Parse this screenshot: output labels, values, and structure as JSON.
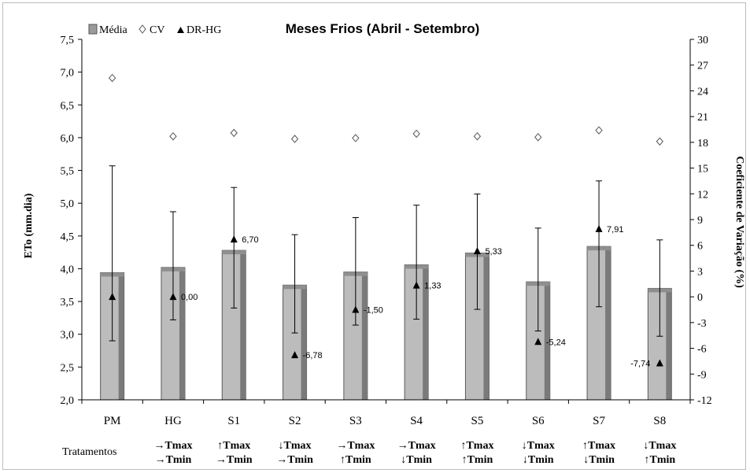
{
  "chart_data": {
    "type": "bar",
    "title": "Meses Frios (Abril - Setembro)",
    "ylabel": "ETo (mm.dia)",
    "y2label": "Coeficiente de Variação (%)",
    "ylim": [
      2.0,
      7.5
    ],
    "y2lim": [
      -12,
      30
    ],
    "yticks": [
      "2,0",
      "2,5",
      "3,0",
      "3,5",
      "4,0",
      "4,5",
      "5,0",
      "5,5",
      "6,0",
      "6,5",
      "7,0",
      "7,5"
    ],
    "y2ticks": [
      "-12",
      "-9",
      "-6",
      "-3",
      "0",
      "3",
      "6",
      "9",
      "12",
      "15",
      "18",
      "21",
      "24",
      "27",
      "30"
    ],
    "categories": [
      "PM",
      "HG",
      "S1",
      "S2",
      "S3",
      "S4",
      "S5",
      "S6",
      "S7",
      "S8"
    ],
    "legend": {
      "position": "top-left",
      "entries": [
        "Média",
        "CV",
        "DR-HG"
      ]
    },
    "series": [
      {
        "name": "Média",
        "type": "bar",
        "axis": "left",
        "values": [
          3.94,
          4.02,
          4.28,
          3.75,
          3.95,
          4.06,
          4.24,
          3.8,
          4.34,
          3.7
        ],
        "error_high": [
          5.57,
          4.87,
          5.24,
          4.52,
          4.78,
          4.97,
          5.14,
          4.62,
          5.34,
          4.44
        ],
        "error_low": [
          2.9,
          3.22,
          3.4,
          3.02,
          3.14,
          3.23,
          3.38,
          3.05,
          3.42,
          2.97
        ]
      },
      {
        "name": "CV",
        "type": "scatter",
        "axis": "right",
        "values": [
          25.5,
          18.7,
          19.1,
          18.4,
          18.5,
          19.0,
          18.7,
          18.6,
          19.4,
          18.1
        ]
      },
      {
        "name": "DR-HG",
        "type": "scatter",
        "axis": "right",
        "values": [
          0.0,
          0.0,
          6.7,
          -6.78,
          -1.5,
          1.33,
          5.33,
          -5.24,
          7.91,
          -7.74
        ],
        "labels": [
          "",
          "0,00",
          "6,70",
          "-6,78",
          "-1,50",
          "1,33",
          "5,33",
          "-5,24",
          "7,91",
          "-7,74"
        ]
      }
    ],
    "treatments": {
      "title": "Tratamentos",
      "rows": [
        [
          "→Tmax",
          "↑Tmax",
          "↓Tmax",
          "→Tmax",
          "→Tmax",
          "↑Tmax",
          "↓Tmax",
          "↑Tmax",
          "↓Tmax"
        ],
        [
          "→Tmin",
          "→Tmin",
          "→Tmin",
          "↑Tmin",
          "↓Tmin",
          "↑Tmin",
          "↓Tmin",
          "↓Tmin",
          "↑Tmin"
        ]
      ]
    },
    "grid": false
  }
}
